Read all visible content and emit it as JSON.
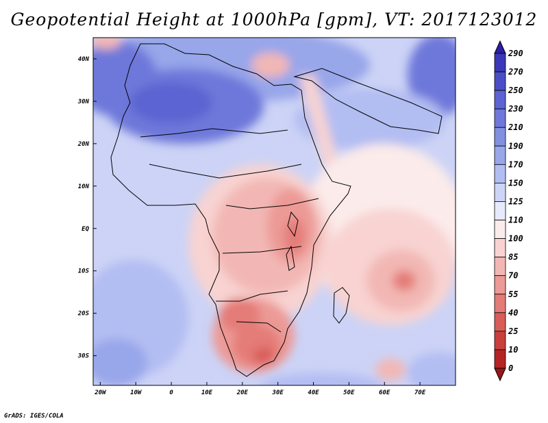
{
  "title": "Geopotential Height at 1000hPa [gpm], VT: 2017123012",
  "credit": "GrADS: IGES/COLA",
  "map": {
    "lat_range": [
      -37,
      45
    ],
    "lon_range": [
      -22,
      80
    ],
    "lat_ticks": [
      {
        "value": 40,
        "label": "40N"
      },
      {
        "value": 30,
        "label": "30N"
      },
      {
        "value": 20,
        "label": "20N"
      },
      {
        "value": 10,
        "label": "10N"
      },
      {
        "value": 0,
        "label": "EQ"
      },
      {
        "value": -10,
        "label": "10S"
      },
      {
        "value": -20,
        "label": "20S"
      },
      {
        "value": -30,
        "label": "30S"
      }
    ],
    "lon_ticks": [
      {
        "value": -20,
        "label": "20W"
      },
      {
        "value": -10,
        "label": "10W"
      },
      {
        "value": 0,
        "label": "0"
      },
      {
        "value": 10,
        "label": "10E"
      },
      {
        "value": 20,
        "label": "20E"
      },
      {
        "value": 30,
        "label": "30E"
      },
      {
        "value": 40,
        "label": "40E"
      },
      {
        "value": 50,
        "label": "50E"
      },
      {
        "value": 60,
        "label": "60E"
      },
      {
        "value": 70,
        "label": "70E"
      }
    ]
  },
  "colorbar": {
    "labels": [
      "290",
      "270",
      "250",
      "230",
      "210",
      "190",
      "170",
      "150",
      "125",
      "110",
      "100",
      "85",
      "70",
      "55",
      "40",
      "25",
      "10",
      "0"
    ],
    "colors": [
      "#2b1fa6",
      "#3a37b8",
      "#4a4ec6",
      "#5c63d2",
      "#6e78da",
      "#8290e2",
      "#98a6ea",
      "#b2bdf2",
      "#cdd5f7",
      "#e6eafc",
      "#fbebea",
      "#f8d3d1",
      "#f2b7b4",
      "#ec9a96",
      "#e47b77",
      "#d85c58",
      "#c93f3c",
      "#b52424",
      "#9c1414"
    ]
  }
}
